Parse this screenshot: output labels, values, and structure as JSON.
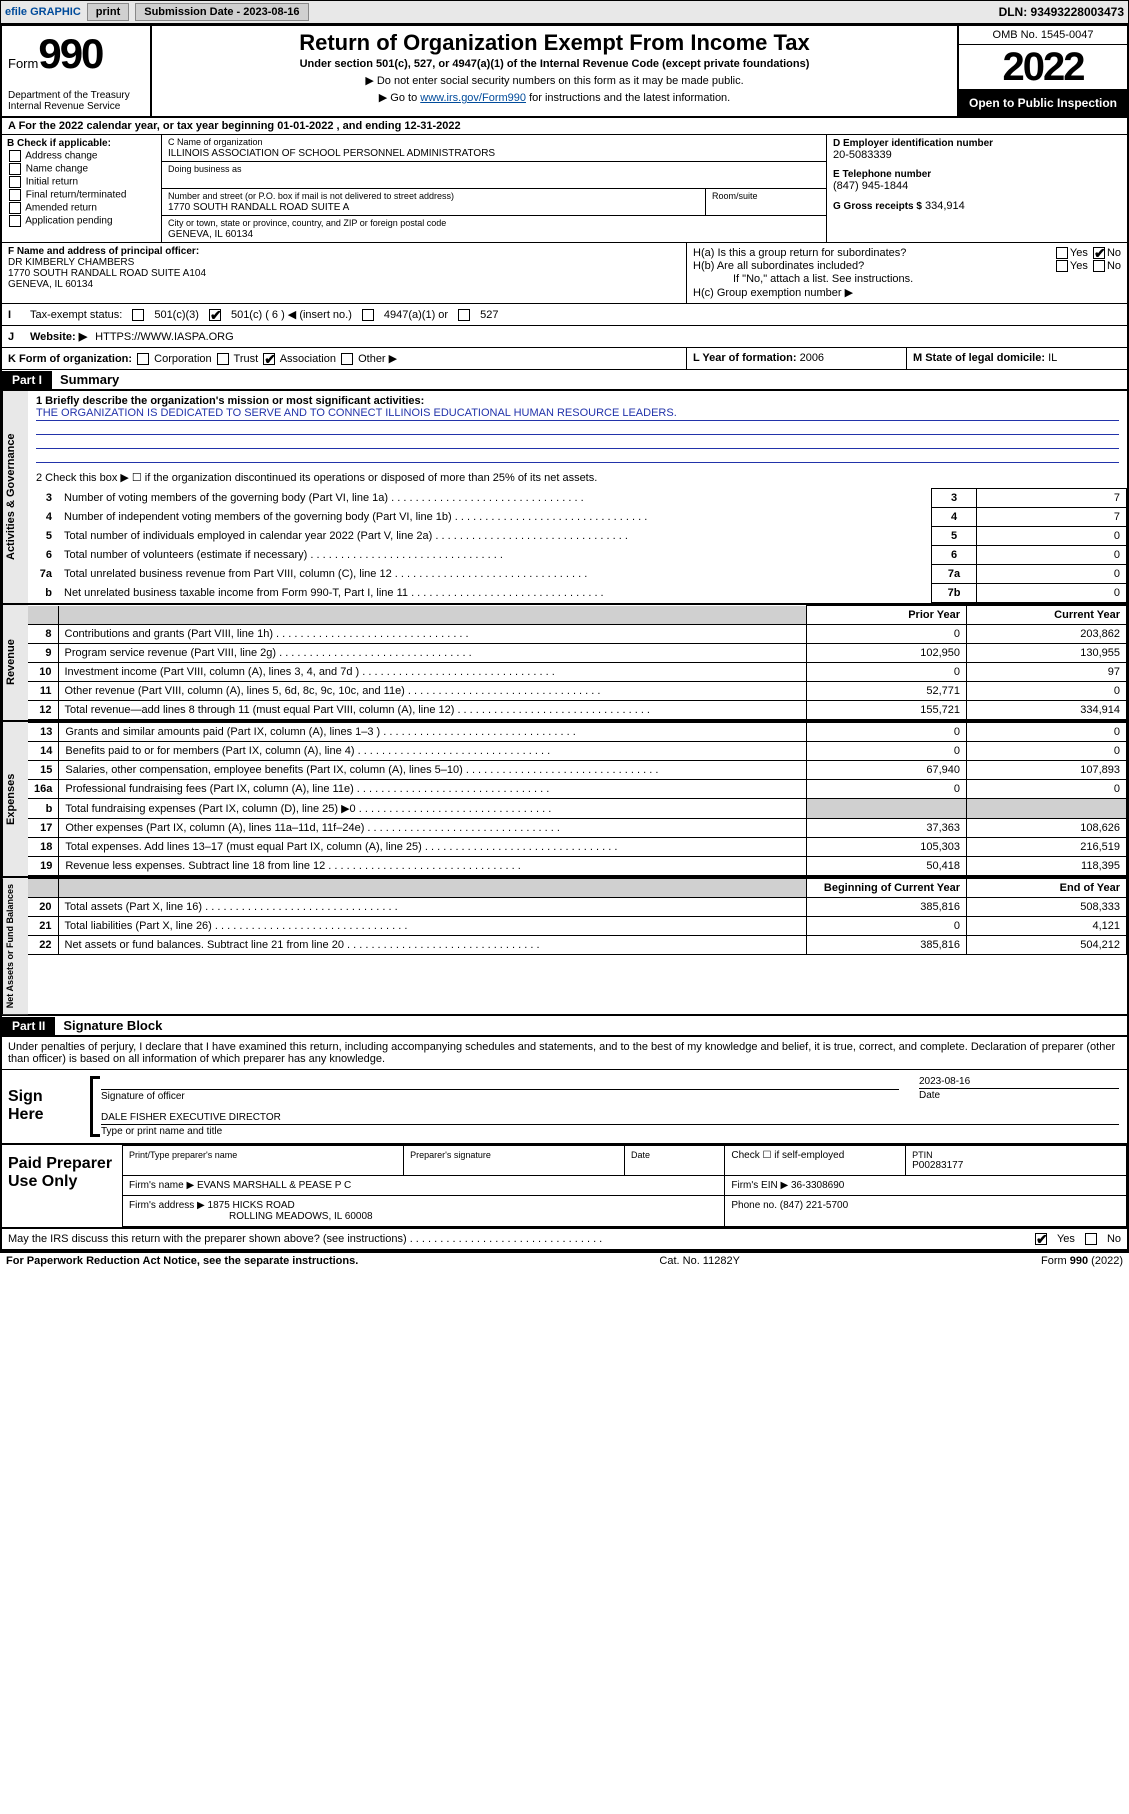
{
  "colors": {
    "link": "#004b9b",
    "blueline": "#2233aa",
    "shade": "#d0d0d0",
    "topbar_bg": "#e8e8e8"
  },
  "topbar": {
    "efile": "efile GRAPHIC",
    "print": "print",
    "submission_label": "Submission Date - 2023-08-16",
    "dln": "DLN: 93493228003473"
  },
  "header": {
    "form_word": "Form",
    "form_no": "990",
    "title": "Return of Organization Exempt From Income Tax",
    "subtitle": "Under section 501(c), 527, or 4947(a)(1) of the Internal Revenue Code (except private foundations)",
    "line1": "▶ Do not enter social security numbers on this form as it may be made public.",
    "line2_pre": "▶ Go to ",
    "line2_link": "www.irs.gov/Form990",
    "line2_post": " for instructions and the latest information.",
    "dept1": "Department of the Treasury",
    "dept2": "Internal Revenue Service",
    "omb": "OMB No. 1545-0047",
    "year": "2022",
    "open": "Open to Public Inspection"
  },
  "rowA": "A For the 2022 calendar year, or tax year beginning 01-01-2022   , and ending 12-31-2022",
  "boxB": {
    "heading": "B Check if applicable:",
    "items": [
      "Address change",
      "Name change",
      "Initial return",
      "Final return/terminated",
      "Amended return",
      "Application pending"
    ]
  },
  "boxC": {
    "name_lbl": "C Name of organization",
    "name": "ILLINOIS ASSOCIATION OF SCHOOL PERSONNEL ADMINISTRATORS",
    "dba_lbl": "Doing business as",
    "dba": "",
    "street_lbl": "Number and street (or P.O. box if mail is not delivered to street address)",
    "street": "1770 SOUTH RANDALL ROAD SUITE A",
    "room_lbl": "Room/suite",
    "room": "",
    "city_lbl": "City or town, state or province, country, and ZIP or foreign postal code",
    "city": "GENEVA, IL  60134"
  },
  "boxD": {
    "lbl": "D Employer identification number",
    "val": "20-5083339"
  },
  "boxE": {
    "lbl": "E Telephone number",
    "val": "(847) 945-1844"
  },
  "boxG": {
    "lbl": "G Gross receipts $",
    "val": "334,914"
  },
  "boxF": {
    "lbl": "F Name and address of principal officer:",
    "name": "DR KIMBERLY CHAMBERS",
    "addr1": "1770 SOUTH RANDALL ROAD SUITE A104",
    "addr2": "GENEVA, IL  60134"
  },
  "boxH": {
    "ha": "H(a)  Is this a group return for subordinates?",
    "ha_yes": false,
    "ha_no": true,
    "hb": "H(b)  Are all subordinates included?",
    "hb_yes": false,
    "hb_no": false,
    "hb_note": "If \"No,\" attach a list. See instructions.",
    "hc": "H(c)  Group exemption number ▶"
  },
  "rowI": {
    "label": "Tax-exempt status:",
    "opt_501c3": "501(c)(3)",
    "opt_501c": "501(c) ( 6 ) ◀ (insert no.)",
    "opt_4947": "4947(a)(1) or",
    "opt_527": "527",
    "checked_501c": true
  },
  "rowJ": {
    "label": "Website: ▶",
    "val": "HTTPS://WWW.IASPA.ORG"
  },
  "rowK": {
    "label": "K Form of organization:",
    "opts": [
      "Corporation",
      "Trust",
      "Association",
      "Other ▶"
    ],
    "checked_index": 2
  },
  "rowL": {
    "label": "L Year of formation:",
    "val": "2006"
  },
  "rowM": {
    "label": "M State of legal domicile:",
    "val": "IL"
  },
  "partI": {
    "tag": "Part I",
    "title": "Summary",
    "mission_lbl": "1   Briefly describe the organization's mission or most significant activities:",
    "mission": "THE ORGANIZATION IS DEDICATED TO SERVE AND TO CONNECT ILLINOIS EDUCATIONAL HUMAN RESOURCE LEADERS.",
    "line2": "2   Check this box ▶ ☐  if the organization discontinued its operations or disposed of more than 25% of its net assets.",
    "gov_rows": [
      {
        "n": "3",
        "d": "Number of voting members of the governing body (Part VI, line 1a)",
        "box": "3",
        "v": "7"
      },
      {
        "n": "4",
        "d": "Number of independent voting members of the governing body (Part VI, line 1b)",
        "box": "4",
        "v": "7"
      },
      {
        "n": "5",
        "d": "Total number of individuals employed in calendar year 2022 (Part V, line 2a)",
        "box": "5",
        "v": "0"
      },
      {
        "n": "6",
        "d": "Total number of volunteers (estimate if necessary)",
        "box": "6",
        "v": "0"
      },
      {
        "n": "7a",
        "d": "Total unrelated business revenue from Part VIII, column (C), line 12",
        "box": "7a",
        "v": "0"
      },
      {
        "n": "b",
        "d": "Net unrelated business taxable income from Form 990-T, Part I, line 11",
        "box": "7b",
        "v": "0"
      }
    ],
    "fin_head_prior": "Prior Year",
    "fin_head_curr": "Current Year",
    "revenue": [
      {
        "n": "8",
        "d": "Contributions and grants (Part VIII, line 1h)",
        "p": "0",
        "c": "203,862"
      },
      {
        "n": "9",
        "d": "Program service revenue (Part VIII, line 2g)",
        "p": "102,950",
        "c": "130,955"
      },
      {
        "n": "10",
        "d": "Investment income (Part VIII, column (A), lines 3, 4, and 7d )",
        "p": "0",
        "c": "97"
      },
      {
        "n": "11",
        "d": "Other revenue (Part VIII, column (A), lines 5, 6d, 8c, 9c, 10c, and 11e)",
        "p": "52,771",
        "c": "0"
      },
      {
        "n": "12",
        "d": "Total revenue—add lines 8 through 11 (must equal Part VIII, column (A), line 12)",
        "p": "155,721",
        "c": "334,914"
      }
    ],
    "expenses": [
      {
        "n": "13",
        "d": "Grants and similar amounts paid (Part IX, column (A), lines 1–3 )",
        "p": "0",
        "c": "0"
      },
      {
        "n": "14",
        "d": "Benefits paid to or for members (Part IX, column (A), line 4)",
        "p": "0",
        "c": "0"
      },
      {
        "n": "15",
        "d": "Salaries, other compensation, employee benefits (Part IX, column (A), lines 5–10)",
        "p": "67,940",
        "c": "107,893"
      },
      {
        "n": "16a",
        "d": "Professional fundraising fees (Part IX, column (A), line 11e)",
        "p": "0",
        "c": "0"
      },
      {
        "n": "b",
        "d": "Total fundraising expenses (Part IX, column (D), line 25) ▶0",
        "p": "SHADE",
        "c": "SHADE"
      },
      {
        "n": "17",
        "d": "Other expenses (Part IX, column (A), lines 11a–11d, 11f–24e)",
        "p": "37,363",
        "c": "108,626"
      },
      {
        "n": "18",
        "d": "Total expenses. Add lines 13–17 (must equal Part IX, column (A), line 25)",
        "p": "105,303",
        "c": "216,519"
      },
      {
        "n": "19",
        "d": "Revenue less expenses. Subtract line 18 from line 12",
        "p": "50,418",
        "c": "118,395"
      }
    ],
    "na_head_beg": "Beginning of Current Year",
    "na_head_end": "End of Year",
    "netassets": [
      {
        "n": "20",
        "d": "Total assets (Part X, line 16)",
        "p": "385,816",
        "c": "508,333"
      },
      {
        "n": "21",
        "d": "Total liabilities (Part X, line 26)",
        "p": "0",
        "c": "4,121"
      },
      {
        "n": "22",
        "d": "Net assets or fund balances. Subtract line 21 from line 20",
        "p": "385,816",
        "c": "504,212"
      }
    ],
    "side_gov": "Activities & Governance",
    "side_rev": "Revenue",
    "side_exp": "Expenses",
    "side_na": "Net Assets or Fund Balances"
  },
  "partII": {
    "tag": "Part II",
    "title": "Signature Block",
    "intro": "Under penalties of perjury, I declare that I have examined this return, including accompanying schedules and statements, and to the best of my knowledge and belief, it is true, correct, and complete. Declaration of preparer (other than officer) is based on all information of which preparer has any knowledge.",
    "sign_here": "Sign Here",
    "sig_officer_lbl": "Signature of officer",
    "date_lbl": "Date",
    "date_val": "2023-08-16",
    "typed_name": "DALE FISHER  EXECUTIVE DIRECTOR",
    "typed_lbl": "Type or print name and title",
    "paid": "Paid Preparer Use Only",
    "prep_name_lbl": "Print/Type preparer's name",
    "prep_sig_lbl": "Preparer's signature",
    "prep_date_lbl": "Date",
    "check_self": "Check ☐ if self-employed",
    "ptin_lbl": "PTIN",
    "ptin": "P00283177",
    "firm_name_lbl": "Firm's name      ▶",
    "firm_name": "EVANS MARSHALL & PEASE P C",
    "firm_ein_lbl": "Firm's EIN ▶",
    "firm_ein": "36-3308690",
    "firm_addr_lbl": "Firm's address ▶",
    "firm_addr1": "1875 HICKS ROAD",
    "firm_addr2": "ROLLING MEADOWS, IL  60008",
    "phone_lbl": "Phone no.",
    "phone": "(847) 221-5700",
    "discuss": "May the IRS discuss this return with the preparer shown above? (see instructions)",
    "discuss_yes": true,
    "discuss_no": false
  },
  "footer": {
    "pra": "For Paperwork Reduction Act Notice, see the separate instructions.",
    "cat": "Cat. No. 11282Y",
    "form": "Form 990 (2022)"
  }
}
